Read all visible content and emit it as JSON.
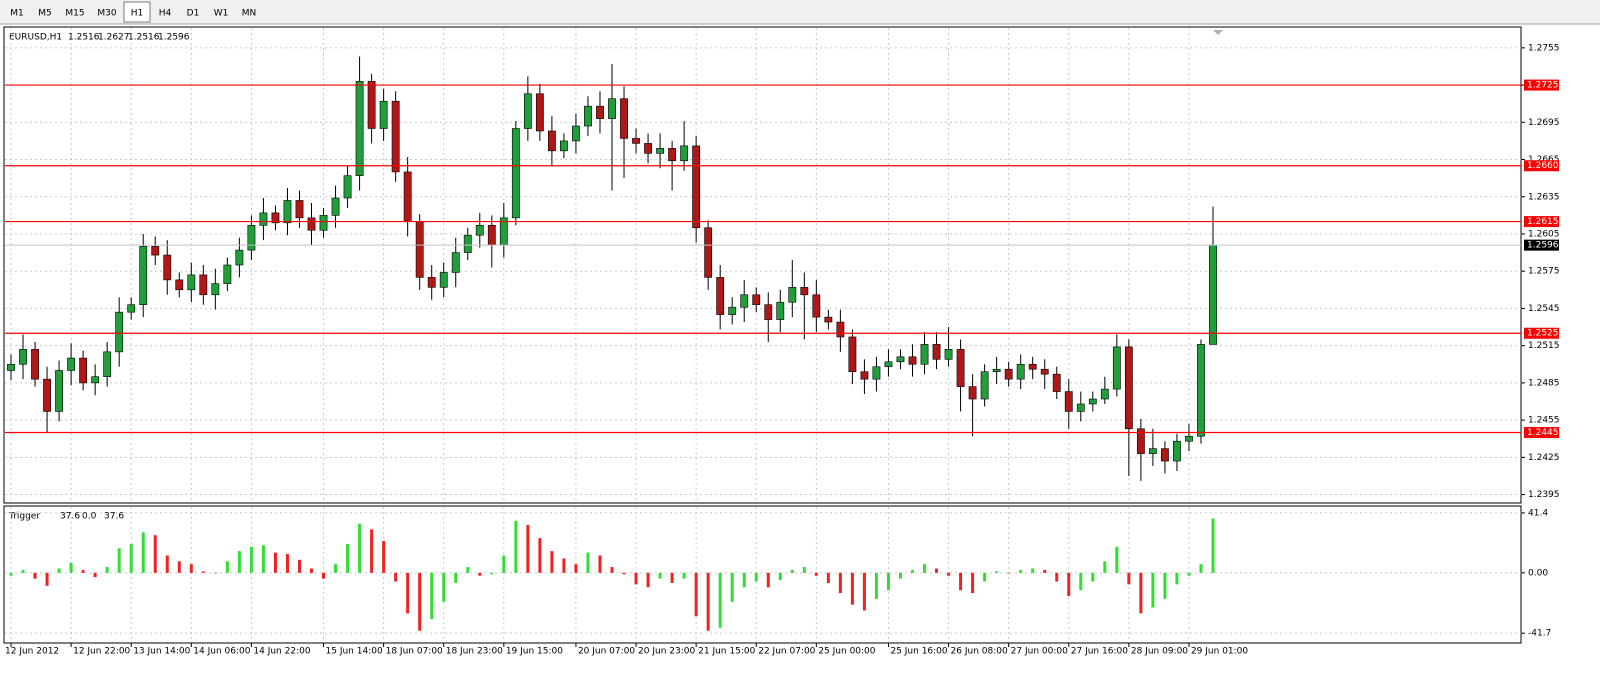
{
  "toolbar": {
    "timeframes": [
      "M1",
      "M5",
      "M15",
      "M30",
      "H1",
      "H4",
      "D1",
      "W1",
      "MN"
    ],
    "active": 4
  },
  "chart_data": [
    {
      "type": "candlestick",
      "title": "EURUSD,H1",
      "categories": [
        "12 Jun 2012",
        null,
        null,
        null,
        null,
        "12 Jun 22:00",
        null,
        null,
        null,
        null,
        "13 Jun 14:00",
        null,
        null,
        null,
        null,
        "14 Jun 06:00",
        null,
        null,
        null,
        null,
        "14 Jun 22:00",
        null,
        null,
        null,
        null,
        null,
        "15 Jun 14:00",
        null,
        null,
        null,
        null,
        "18 Jun 07:00",
        null,
        null,
        null,
        null,
        "18 Jun 23:00",
        null,
        null,
        null,
        null,
        "19 Jun 15:00",
        null,
        null,
        null,
        null,
        null,
        "20 Jun 07:00",
        null,
        null,
        null,
        null,
        "20 Jun 23:00",
        null,
        null,
        null,
        null,
        "21 Jun 15:00",
        null,
        null,
        null,
        null,
        "22 Jun 07:00",
        null,
        null,
        null,
        null,
        "25 Jun 00:00",
        null,
        null,
        null,
        null,
        null,
        "25 Jun 16:00",
        null,
        null,
        null,
        null,
        "26 Jun 08:00",
        null,
        null,
        null,
        null,
        "27 Jun 00:00",
        null,
        null,
        null,
        null,
        "27 Jun 16:00",
        null,
        null,
        null,
        null,
        "28 Jun 09:00",
        null,
        null,
        null,
        null,
        "29 Jun 01:00",
        null,
        null
      ],
      "open": [
        1.2495,
        1.25,
        1.2512,
        1.2488,
        1.2462,
        1.2495,
        1.2505,
        1.2485,
        1.249,
        1.251,
        1.2542,
        1.2548,
        1.2595,
        1.2588,
        1.2568,
        1.256,
        1.2572,
        1.2556,
        1.2565,
        1.258,
        1.2592,
        1.2612,
        1.2622,
        1.2614,
        1.2632,
        1.2618,
        1.2608,
        1.262,
        1.2634,
        1.2652,
        1.2728,
        1.269,
        1.2712,
        1.2655,
        1.2615,
        1.257,
        1.2562,
        1.2574,
        1.259,
        1.2604,
        1.2612,
        1.2596,
        1.2618,
        1.269,
        1.2718,
        1.2688,
        1.2672,
        1.268,
        1.2692,
        1.2708,
        1.2698,
        1.2714,
        1.2682,
        1.2678,
        1.267,
        1.2674,
        1.2664,
        1.2676,
        1.261,
        1.257,
        1.254,
        1.2546,
        1.2556,
        1.2548,
        1.2536,
        1.255,
        1.2562,
        1.2556,
        1.2538,
        1.2534,
        1.2522,
        1.2494,
        1.2488,
        1.2498,
        1.2502,
        1.2506,
        1.25,
        1.2516,
        1.2504,
        1.2512,
        1.2482,
        1.2472,
        1.2494,
        1.2496,
        1.2488,
        1.25,
        1.2496,
        1.2492,
        1.2478,
        1.2462,
        1.2468,
        1.2472,
        1.248,
        1.2514,
        1.2448,
        1.2428,
        1.2432,
        1.2422,
        1.2438,
        1.2442,
        1.2516
      ],
      "high": [
        1.2508,
        1.2524,
        1.2518,
        1.2498,
        1.2503,
        1.2517,
        1.2511,
        1.25,
        1.2518,
        1.2554,
        1.2554,
        1.2605,
        1.2603,
        1.26,
        1.2574,
        1.2582,
        1.258,
        1.2577,
        1.2586,
        1.2602,
        1.262,
        1.2634,
        1.2628,
        1.2642,
        1.264,
        1.263,
        1.2626,
        1.2644,
        1.266,
        1.2748,
        1.2734,
        1.2722,
        1.272,
        1.2667,
        1.2621,
        1.258,
        1.2582,
        1.2602,
        1.261,
        1.2622,
        1.262,
        1.263,
        1.2696,
        1.2732,
        1.2726,
        1.27,
        1.2686,
        1.2702,
        1.2716,
        1.272,
        1.2742,
        1.2724,
        1.269,
        1.2686,
        1.2686,
        1.268,
        1.2696,
        1.2684,
        1.2616,
        1.258,
        1.2554,
        1.2568,
        1.2562,
        1.2558,
        1.256,
        1.2584,
        1.2574,
        1.2568,
        1.2544,
        1.2544,
        1.2528,
        1.2504,
        1.2506,
        1.2512,
        1.2512,
        1.2516,
        1.2526,
        1.2526,
        1.253,
        1.252,
        1.2492,
        1.25,
        1.2506,
        1.2502,
        1.2508,
        1.2506,
        1.2504,
        1.2498,
        1.2488,
        1.2478,
        1.2478,
        1.249,
        1.2524,
        1.252,
        1.2456,
        1.2448,
        1.2438,
        1.2444,
        1.2452,
        1.252,
        1.2627
      ],
      "low": [
        1.2487,
        1.2488,
        1.2482,
        1.2445,
        1.2454,
        1.2483,
        1.2479,
        1.2475,
        1.2482,
        1.2498,
        1.2536,
        1.2538,
        1.258,
        1.2556,
        1.2554,
        1.255,
        1.2548,
        1.2544,
        1.2559,
        1.257,
        1.2584,
        1.26,
        1.2608,
        1.2604,
        1.261,
        1.2596,
        1.2602,
        1.261,
        1.2626,
        1.264,
        1.2678,
        1.268,
        1.2647,
        1.2603,
        1.256,
        1.2552,
        1.2554,
        1.2562,
        1.2584,
        1.2594,
        1.2578,
        1.2586,
        1.2612,
        1.268,
        1.268,
        1.266,
        1.2666,
        1.267,
        1.2684,
        1.2686,
        1.264,
        1.265,
        1.267,
        1.2662,
        1.2658,
        1.264,
        1.2656,
        1.2598,
        1.256,
        1.2528,
        1.2532,
        1.2534,
        1.2542,
        1.2518,
        1.2526,
        1.2538,
        1.252,
        1.2526,
        1.2528,
        1.251,
        1.2484,
        1.2476,
        1.2478,
        1.249,
        1.2496,
        1.249,
        1.2492,
        1.2496,
        1.2498,
        1.2462,
        1.2442,
        1.2466,
        1.2484,
        1.2482,
        1.248,
        1.2488,
        1.248,
        1.2472,
        1.2448,
        1.2454,
        1.2462,
        1.2468,
        1.2474,
        1.241,
        1.2406,
        1.2418,
        1.2412,
        1.2414,
        1.243,
        1.2436,
        1.2516
      ],
      "close": [
        1.25,
        1.2512,
        1.2488,
        1.2462,
        1.2495,
        1.2505,
        1.2485,
        1.249,
        1.251,
        1.2542,
        1.2548,
        1.2595,
        1.2588,
        1.2568,
        1.256,
        1.2572,
        1.2556,
        1.2565,
        1.258,
        1.2592,
        1.2612,
        1.2622,
        1.2614,
        1.2632,
        1.2618,
        1.2608,
        1.262,
        1.2634,
        1.2652,
        1.2728,
        1.269,
        1.2712,
        1.2655,
        1.2615,
        1.257,
        1.2562,
        1.2574,
        1.259,
        1.2604,
        1.2612,
        1.2596,
        1.2618,
        1.269,
        1.2718,
        1.2688,
        1.2672,
        1.268,
        1.2692,
        1.2708,
        1.2698,
        1.2714,
        1.2682,
        1.2678,
        1.267,
        1.2674,
        1.2664,
        1.2676,
        1.261,
        1.257,
        1.254,
        1.2546,
        1.2556,
        1.2548,
        1.2536,
        1.255,
        1.2562,
        1.2556,
        1.2538,
        1.2534,
        1.2522,
        1.2494,
        1.2488,
        1.2498,
        1.2502,
        1.2506,
        1.25,
        1.2516,
        1.2504,
        1.2512,
        1.2482,
        1.2472,
        1.2494,
        1.2496,
        1.2488,
        1.25,
        1.2496,
        1.2492,
        1.2478,
        1.2462,
        1.2468,
        1.2472,
        1.248,
        1.2514,
        1.2448,
        1.2428,
        1.2432,
        1.2422,
        1.2438,
        1.2442,
        1.2516,
        1.2596
      ],
      "up_color": "#1f9e3a",
      "down_color": "#b01818",
      "wick_color": "#000000",
      "ylim": [
        1.2389,
        1.2771
      ],
      "yticks": [
        1.2395,
        1.2425,
        1.2455,
        1.2485,
        1.2515,
        1.2545,
        1.2575,
        1.2605,
        1.2635,
        1.2665,
        1.2695,
        1.2725,
        1.2755
      ],
      "grid": true,
      "hlines": [
        1.2725,
        {
          "value": 1.266,
          "label": "1.2660"
        },
        1.2615,
        1.2525,
        1.2445
      ],
      "hline_color": "#ff0000",
      "bid": 1.2596,
      "bid_color": "#c0c0c0"
    },
    {
      "type": "histogram",
      "title": "Trigger",
      "header_values": [
        37.6,
        {
          "value": 0,
          "label": "0.0"
        },
        37.6
      ],
      "values": [
        -2,
        2,
        -4,
        -9,
        3,
        7,
        2,
        -3,
        4,
        17,
        20,
        28,
        26,
        12,
        8,
        6,
        1,
        0,
        8,
        15,
        18,
        19,
        14,
        13,
        9,
        3,
        -4,
        6,
        20,
        34,
        30,
        22,
        -6,
        -28,
        -40,
        -32,
        -20,
        -7,
        4,
        -2,
        -1,
        12,
        36,
        33,
        24,
        15,
        10,
        6,
        14,
        12,
        4,
        -1,
        -8,
        -10,
        -4,
        -7,
        -4,
        -30,
        -40,
        -38,
        -20,
        -10,
        -6,
        -10,
        -5,
        2,
        4,
        -2,
        -7,
        -14,
        -22,
        -26,
        -18,
        -12,
        -4,
        2,
        6,
        3,
        -2,
        -12,
        -14,
        -6,
        1,
        0,
        2,
        3,
        2,
        -6,
        -16,
        -12,
        -6,
        8,
        18,
        -8,
        -28,
        -24,
        -18,
        -8,
        -2,
        6,
        37.6
      ],
      "up_color": "#33dd33",
      "down_color": "#ee2222",
      "ylim": [
        -47.8,
        45.5
      ],
      "yticks": [
        -41.7,
        {
          "value": 0,
          "label": "0.00"
        },
        41.4
      ],
      "grid": true
    }
  ]
}
